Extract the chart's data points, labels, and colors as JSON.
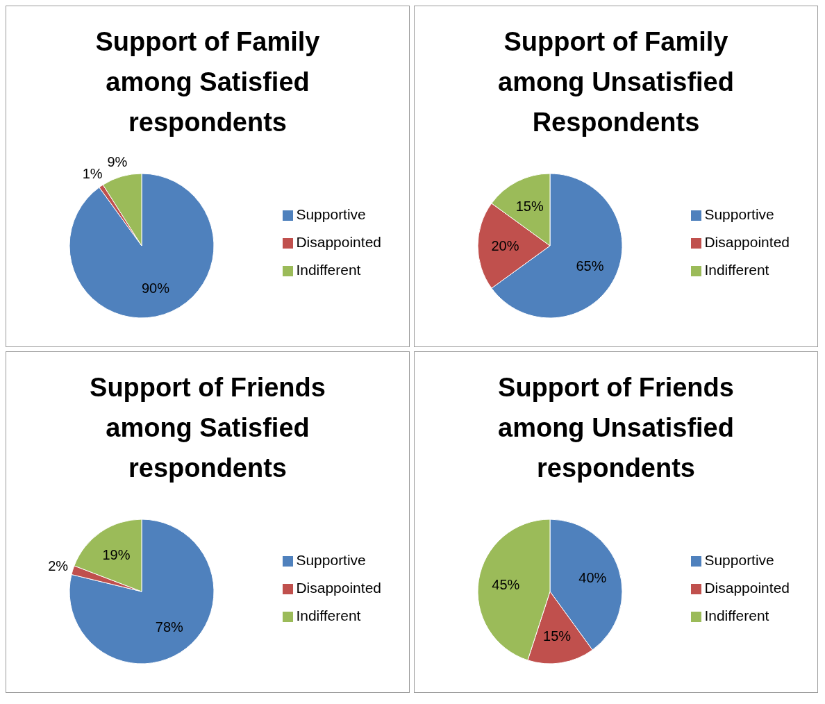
{
  "chart_data": [
    {
      "type": "pie",
      "title": "Support of Family among Satisfied respondents",
      "categories": [
        "Supportive",
        "Disappointed",
        "Indifferent"
      ],
      "values": [
        90,
        1,
        9
      ],
      "value_labels": [
        "90%",
        "1%",
        "9%"
      ],
      "colors": [
        "#4f81bd",
        "#c0504d",
        "#9bbb59"
      ],
      "legend": "right"
    },
    {
      "type": "pie",
      "title": "Support of Family among Unsatisfied Respondents",
      "categories": [
        "Supportive",
        "Disappointed",
        "Indifferent"
      ],
      "values": [
        65,
        20,
        15
      ],
      "value_labels": [
        "65%",
        "20%",
        "15%"
      ],
      "colors": [
        "#4f81bd",
        "#c0504d",
        "#9bbb59"
      ],
      "legend": "right"
    },
    {
      "type": "pie",
      "title": "Support of Friends among Satisfied respondents",
      "categories": [
        "Supportive",
        "Disappointed",
        "Indifferent"
      ],
      "values": [
        78,
        2,
        19
      ],
      "value_labels": [
        "78%",
        "2%",
        "19%"
      ],
      "colors": [
        "#4f81bd",
        "#c0504d",
        "#9bbb59"
      ],
      "legend": "right"
    },
    {
      "type": "pie",
      "title": "Support of Friends among Unsatisfied respondents",
      "categories": [
        "Supportive",
        "Disappointed",
        "Indifferent"
      ],
      "values": [
        40,
        15,
        45
      ],
      "value_labels": [
        "40%",
        "15%",
        "45%"
      ],
      "colors": [
        "#4f81bd",
        "#c0504d",
        "#9bbb59"
      ],
      "legend": "right"
    }
  ]
}
